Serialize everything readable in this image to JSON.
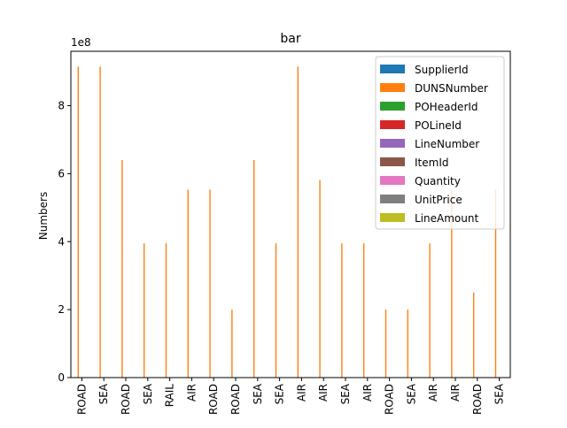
{
  "chart_data": {
    "type": "bar",
    "title": "bar",
    "xlabel": "",
    "ylabel": "Numbers",
    "y_scale_label": "1e8",
    "ylim": [
      0,
      9.6
    ],
    "yticks": [
      0,
      2,
      4,
      6,
      8
    ],
    "legend_position": "top-right",
    "categories": [
      "ROAD",
      "SEA",
      "ROAD",
      "SEA",
      "RAIL",
      "AIR",
      "ROAD",
      "ROAD",
      "SEA",
      "SEA",
      "AIR",
      "AIR",
      "SEA",
      "AIR",
      "ROAD",
      "SEA",
      "AIR",
      "AIR",
      "ROAD",
      "SEA"
    ],
    "series": [
      {
        "name": "SupplierId",
        "color": "#1f77b4",
        "values": [
          0,
          0,
          0,
          0,
          0,
          0,
          0,
          0,
          0,
          0,
          0,
          0,
          0,
          0,
          0,
          0,
          0,
          0,
          0,
          0
        ]
      },
      {
        "name": "DUNSNumber",
        "color": "#ff7f0e",
        "values": [
          9.15,
          9.15,
          6.4,
          3.95,
          3.95,
          5.53,
          5.53,
          2.0,
          6.4,
          3.95,
          9.15,
          5.81,
          3.95,
          3.95,
          2.0,
          2.0,
          3.95,
          5.53,
          2.5,
          5.53
        ]
      },
      {
        "name": "POHeaderId",
        "color": "#2ca02c",
        "values": [
          0,
          0,
          0,
          0,
          0,
          0,
          0,
          0,
          0,
          0,
          0,
          0,
          0,
          0,
          0,
          0,
          0,
          0,
          0,
          0
        ]
      },
      {
        "name": "POLineId",
        "color": "#d62728",
        "values": [
          0,
          0,
          0,
          0,
          0,
          0,
          0,
          0,
          0,
          0,
          0,
          0,
          0,
          0,
          0,
          0,
          0,
          0,
          0,
          0
        ]
      },
      {
        "name": "LineNumber",
        "color": "#9467bd",
        "values": [
          0,
          0,
          0,
          0,
          0,
          0,
          0,
          0,
          0,
          0,
          0,
          0,
          0,
          0,
          0,
          0,
          0,
          0,
          0,
          0
        ]
      },
      {
        "name": "ItemId",
        "color": "#8c564b",
        "values": [
          0,
          0,
          0,
          0,
          0,
          0,
          0,
          0,
          0,
          0,
          0,
          0,
          0,
          0,
          0,
          0,
          0,
          0,
          0,
          0
        ]
      },
      {
        "name": "Quantity",
        "color": "#e377c2",
        "values": [
          0,
          0,
          0,
          0,
          0,
          0,
          0,
          0,
          0,
          0,
          0,
          0,
          0,
          0,
          0,
          0,
          0,
          0,
          0,
          0
        ]
      },
      {
        "name": "UnitPrice",
        "color": "#7f7f7f",
        "values": [
          0,
          0,
          0,
          0,
          0,
          0,
          0,
          0,
          0,
          0,
          0,
          0,
          0,
          0,
          0,
          0,
          0,
          0,
          0,
          0
        ]
      },
      {
        "name": "LineAmount",
        "color": "#bcbd22",
        "values": [
          0,
          0,
          0,
          0,
          0,
          0,
          0,
          0,
          0,
          0,
          0,
          0,
          0,
          0,
          0,
          0,
          0,
          0,
          0,
          0
        ]
      }
    ]
  }
}
